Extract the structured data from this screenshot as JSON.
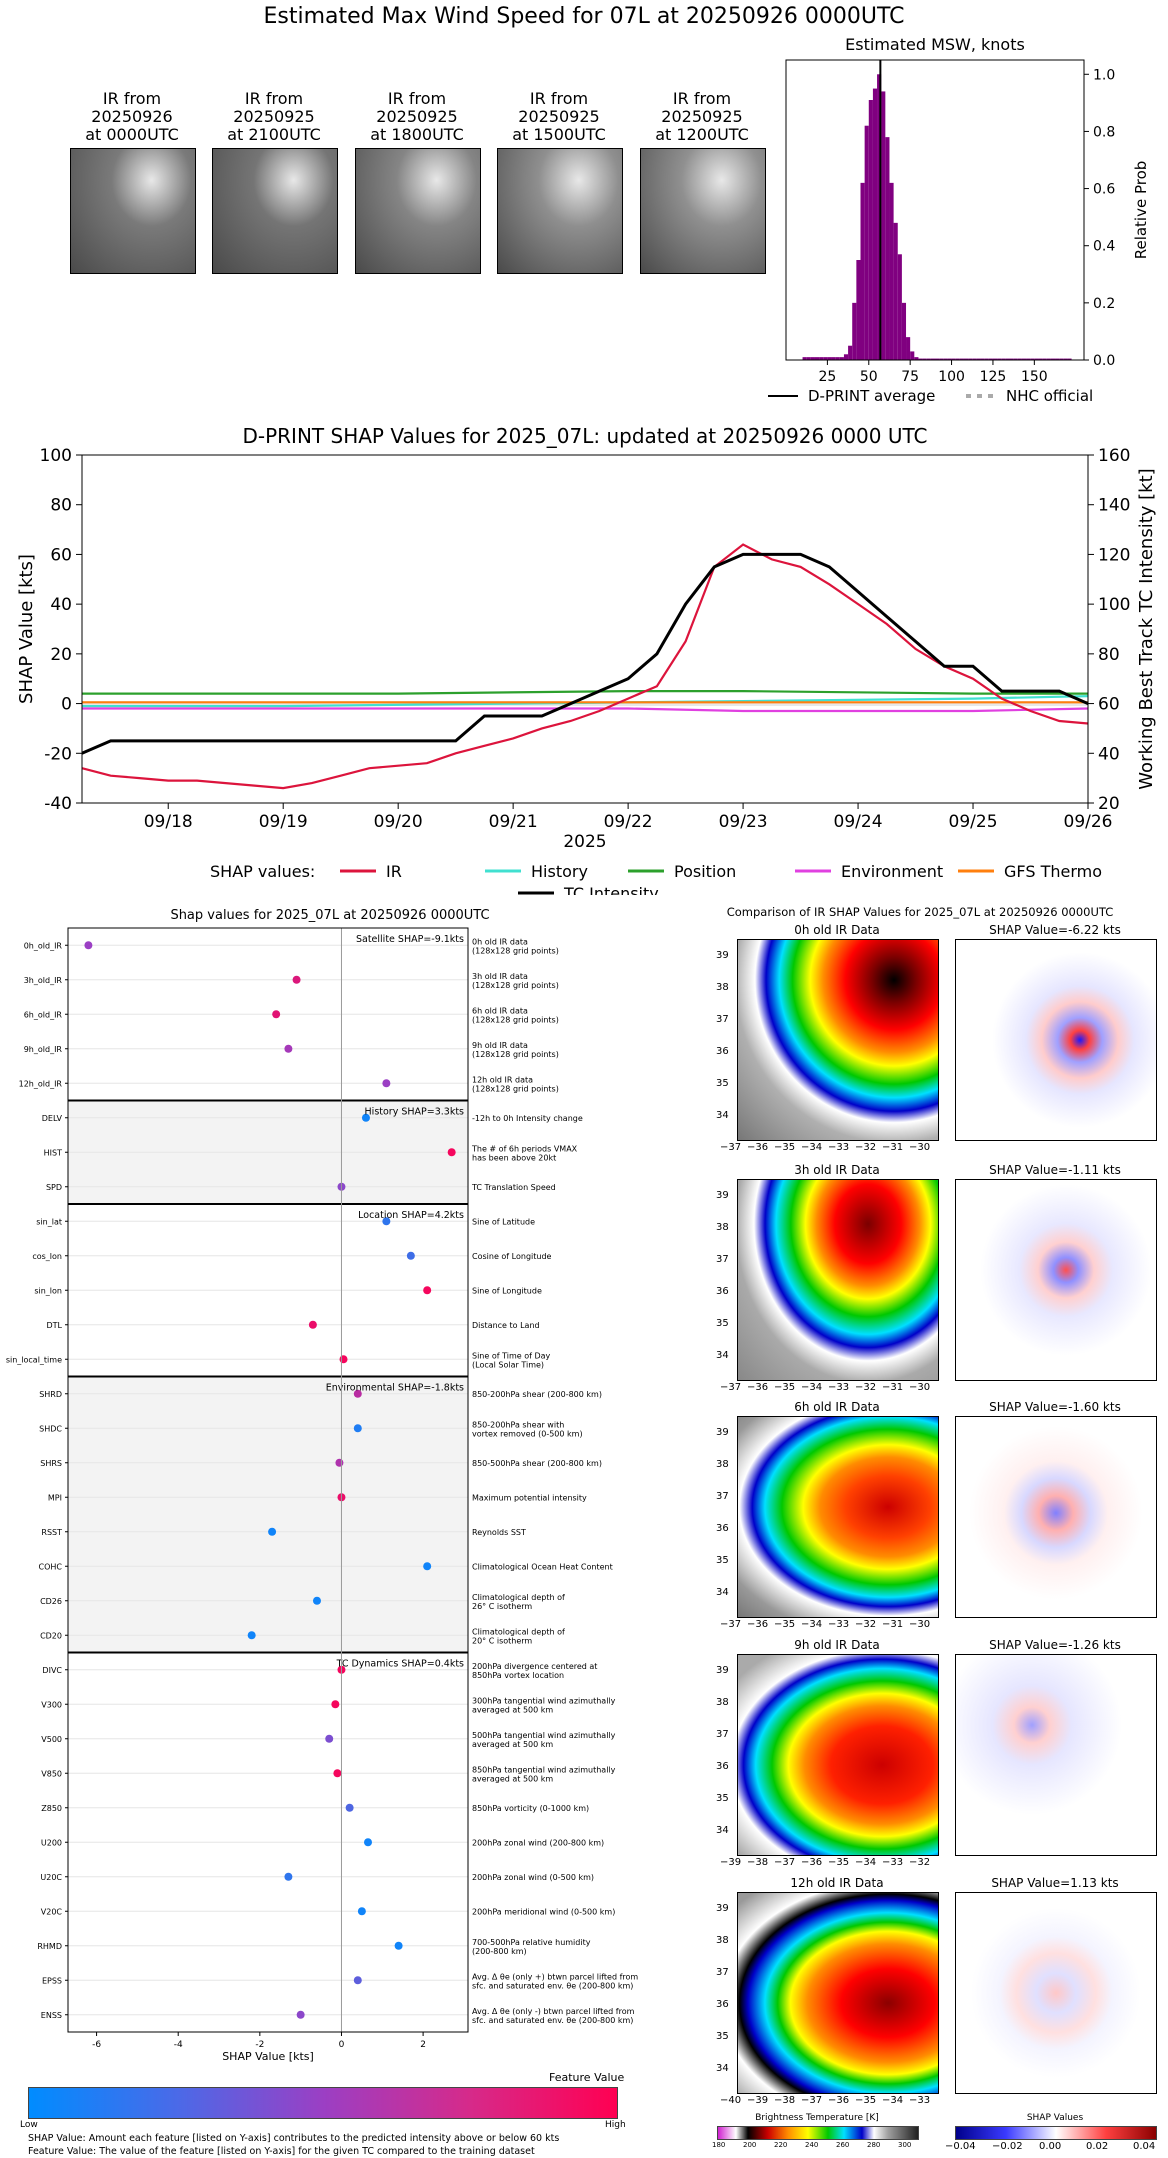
{
  "main_title": "Estimated Max Wind Speed for 07L at 20250926 0000UTC",
  "thumbnails": [
    {
      "caption_l1": "IR from",
      "caption_l2": "20250926",
      "caption_l3": "at 0000UTC",
      "tone": "#7a7a7a"
    },
    {
      "caption_l1": "IR from",
      "caption_l2": "20250925",
      "caption_l3": "at 2100UTC",
      "tone": "#757575"
    },
    {
      "caption_l1": "IR from",
      "caption_l2": "20250925",
      "caption_l3": "at 1800UTC",
      "tone": "#858585"
    },
    {
      "caption_l1": "IR from",
      "caption_l2": "20250925",
      "caption_l3": "at 1500UTC",
      "tone": "#8f8f8f"
    },
    {
      "caption_l1": "IR from",
      "caption_l2": "20250925",
      "caption_l3": "at 1200UTC",
      "tone": "#909090"
    }
  ],
  "chart_data": [
    {
      "id": "msw_histogram",
      "type": "bar",
      "title": "Estimated MSW, knots",
      "xlabel": "",
      "ylabel": "Relative Prob",
      "xlim": [
        0,
        180
      ],
      "ylim": [
        0,
        1.05
      ],
      "xticks": [
        "25",
        "50",
        "75",
        "100",
        "125",
        "150"
      ],
      "yticks": [
        "0.0",
        "0.2",
        "0.4",
        "0.6",
        "0.8",
        "1.0"
      ],
      "bin_width": 2.5,
      "bins_start": [
        10,
        12.5,
        15,
        17.5,
        20,
        22.5,
        25,
        27.5,
        30,
        32.5,
        35,
        37.5,
        40,
        42.5,
        45,
        47.5,
        50,
        52.5,
        55,
        57.5,
        60,
        62.5,
        65,
        67.5,
        70,
        72.5,
        75,
        77.5,
        80,
        82.5,
        85,
        87.5,
        90,
        92.5,
        95,
        97.5,
        100,
        102.5,
        105,
        107.5,
        110,
        112.5,
        115,
        117.5,
        120,
        122.5,
        125,
        127.5,
        130,
        132.5,
        135,
        137.5,
        140,
        142.5,
        145,
        147.5,
        150,
        152.5,
        155,
        157.5,
        160,
        162.5,
        165,
        167.5,
        170
      ],
      "values": [
        0.01,
        0.01,
        0.01,
        0.01,
        0.01,
        0.01,
        0.01,
        0.01,
        0.01,
        0.01,
        0.02,
        0.05,
        0.2,
        0.35,
        0.62,
        0.82,
        0.91,
        0.95,
        1.0,
        0.94,
        0.78,
        0.62,
        0.48,
        0.37,
        0.2,
        0.08,
        0.03,
        0.01,
        0.005,
        0.005,
        0.005,
        0.005,
        0.005,
        0.005,
        0.005,
        0.005,
        0.005,
        0.005,
        0.005,
        0.005,
        0.005,
        0.005,
        0.005,
        0.005,
        0.005,
        0.005,
        0.005,
        0.005,
        0.005,
        0.005,
        0.005,
        0.005,
        0.005,
        0.005,
        0.005,
        0.005,
        0.005,
        0.005,
        0.005,
        0.005,
        0.005,
        0.005,
        0.005,
        0.005,
        0.005
      ],
      "average_line_x": 57,
      "bar_color": "#800080",
      "legend": [
        {
          "label": "D-PRINT average",
          "style": "solid-black"
        },
        {
          "label": "NHC official",
          "style": "dotted-gray"
        }
      ]
    },
    {
      "id": "shap_timeseries",
      "type": "line",
      "title": "D-PRINT SHAP Values for 2025_07L: updated at 20250926 0000 UTC",
      "xlabel": "2025",
      "ylabel": "SHAP Value [kts]",
      "y2label": "Working Best Track TC Intensity [kt]",
      "xlim": [
        17.25,
        26.0
      ],
      "ylim": [
        -40,
        100
      ],
      "y2lim": [
        20,
        160
      ],
      "xticks": [
        {
          "x": 18,
          "label": "09/18"
        },
        {
          "x": 19,
          "label": "09/19"
        },
        {
          "x": 20,
          "label": "09/20"
        },
        {
          "x": 21,
          "label": "09/21"
        },
        {
          "x": 22,
          "label": "09/22"
        },
        {
          "x": 23,
          "label": "09/23"
        },
        {
          "x": 24,
          "label": "09/24"
        },
        {
          "x": 25,
          "label": "09/25"
        },
        {
          "x": 26,
          "label": "09/26"
        }
      ],
      "yticks": [
        "-40",
        "-20",
        "0",
        "20",
        "40",
        "60",
        "80",
        "100"
      ],
      "y2ticks": [
        "20",
        "40",
        "60",
        "80",
        "100",
        "120",
        "140",
        "160"
      ],
      "legend_prefix": "SHAP values:",
      "series": [
        {
          "name": "IR",
          "color": "#dc143c",
          "x": [
            17.25,
            17.5,
            17.75,
            18.0,
            18.25,
            18.5,
            18.75,
            19.0,
            19.25,
            19.5,
            19.75,
            20.0,
            20.25,
            20.5,
            20.75,
            21.0,
            21.25,
            21.5,
            21.75,
            22.0,
            22.25,
            22.5,
            22.75,
            23.0,
            23.25,
            23.5,
            23.75,
            24.0,
            24.25,
            24.5,
            24.75,
            25.0,
            25.25,
            25.5,
            25.75,
            26.0
          ],
          "values": [
            -26,
            -29,
            -30,
            -31,
            -31,
            -32,
            -33,
            -34,
            -32,
            -29,
            -26,
            -25,
            -24,
            -20,
            -17,
            -14,
            -10,
            -7,
            -3,
            2,
            7,
            25,
            55,
            64,
            58,
            55,
            48,
            40,
            32,
            22,
            15,
            10,
            2,
            -3,
            -7,
            -8
          ]
        },
        {
          "name": "History",
          "color": "#40e0d0",
          "x": [
            17.25,
            19,
            21,
            23,
            25,
            26
          ],
          "values": [
            -1,
            -1,
            0,
            1,
            2,
            3
          ]
        },
        {
          "name": "Position",
          "color": "#2ca02c",
          "x": [
            17.25,
            18,
            20,
            22,
            23,
            25,
            26
          ],
          "values": [
            4,
            4,
            4,
            5,
            5,
            4,
            4
          ]
        },
        {
          "name": "Environment",
          "color": "#e040e0",
          "x": [
            17.25,
            18,
            20,
            22,
            23,
            24,
            25,
            26
          ],
          "values": [
            -2,
            -2,
            -2,
            -2,
            -3,
            -3,
            -3,
            -2
          ]
        },
        {
          "name": "GFS Thermo",
          "color": "#ff7f0e",
          "x": [
            17.25,
            19,
            21,
            23,
            25,
            26
          ],
          "values": [
            0.5,
            0.5,
            0.5,
            0.5,
            0.5,
            0.5
          ]
        }
      ],
      "intensity": {
        "name": "TC Intensity",
        "color": "#000000",
        "x": [
          17.25,
          17.5,
          18.0,
          19.0,
          20.0,
          20.25,
          20.5,
          20.75,
          21.0,
          21.25,
          21.5,
          21.75,
          22.0,
          22.25,
          22.5,
          22.75,
          23.0,
          23.25,
          23.5,
          23.75,
          24.0,
          24.25,
          24.5,
          24.75,
          25.0,
          25.25,
          25.5,
          25.75,
          26.0
        ],
        "values": [
          40,
          45,
          45,
          45,
          45,
          45,
          45,
          55,
          55,
          55,
          60,
          65,
          70,
          80,
          100,
          115,
          120,
          120,
          120,
          115,
          105,
          95,
          85,
          75,
          75,
          65,
          65,
          65,
          60
        ]
      }
    },
    {
      "id": "shap_features",
      "type": "scatter",
      "title": "Shap values for 2025_07L at 20250926 0000UTC",
      "xlabel": "SHAP Value [kts]",
      "xlim": [
        -6.7,
        3.1
      ],
      "xticks": [
        "-6",
        "-4",
        "-2",
        "0",
        "2"
      ],
      "groups": [
        {
          "label": "Satellite SHAP=-9.1kts",
          "shaded": false,
          "features": [
            {
              "name": "0h_old_IR",
              "desc_l1": "0h old IR data",
              "desc_l2": "(128x128 grid points)",
              "value": -6.2,
              "fv": 0.5
            },
            {
              "name": "3h_old_IR",
              "desc_l1": "3h old IR data",
              "desc_l2": "(128x128 grid points)",
              "value": -1.1,
              "fv": 0.82
            },
            {
              "name": "6h_old_IR",
              "desc_l1": "6h old IR data",
              "desc_l2": "(128x128 grid points)",
              "value": -1.6,
              "fv": 0.85
            },
            {
              "name": "9h_old_IR",
              "desc_l1": "9h old IR data",
              "desc_l2": "(128x128 grid points)",
              "value": -1.3,
              "fv": 0.55
            },
            {
              "name": "12h_old_IR",
              "desc_l1": "12h old IR data",
              "desc_l2": "(128x128 grid points)",
              "value": 1.1,
              "fv": 0.5
            }
          ]
        },
        {
          "label": "History SHAP=3.3kts",
          "shaded": true,
          "features": [
            {
              "name": "DELV",
              "desc_l1": "-12h to 0h Intensity change",
              "desc_l2": "",
              "value": 0.6,
              "fv": 0.05
            },
            {
              "name": "HIST",
              "desc_l1": "The # of 6h periods VMAX",
              "desc_l2": "has been above 20kt",
              "value": 2.7,
              "fv": 0.95
            },
            {
              "name": "SPD",
              "desc_l1": "TC Translation Speed",
              "desc_l2": "",
              "value": 0.0,
              "fv": 0.45
            }
          ]
        },
        {
          "label": "Location SHAP=4.2kts",
          "shaded": false,
          "features": [
            {
              "name": "sin_lat",
              "desc_l1": "Sine of Latitude",
              "desc_l2": "",
              "value": 1.1,
              "fv": 0.15
            },
            {
              "name": "cos_lon",
              "desc_l1": "Cosine of Longitude",
              "desc_l2": "",
              "value": 1.7,
              "fv": 0.2
            },
            {
              "name": "sin_lon",
              "desc_l1": "Sine of Longitude",
              "desc_l2": "",
              "value": 2.1,
              "fv": 0.95
            },
            {
              "name": "DTL",
              "desc_l1": "Distance to Land",
              "desc_l2": "",
              "value": -0.7,
              "fv": 0.9
            },
            {
              "name": "sin_local_time",
              "desc_l1": "Sine of Time of Day",
              "desc_l2": "(Local Solar Time)",
              "value": 0.05,
              "fv": 0.95
            }
          ]
        },
        {
          "label": "Environmental SHAP=-1.8kts",
          "shaded": true,
          "features": [
            {
              "name": "SHRD",
              "desc_l1": "850-200hPa shear (200-800 km)",
              "desc_l2": "",
              "value": 0.4,
              "fv": 0.65
            },
            {
              "name": "SHDC",
              "desc_l1": "850-200hPa shear with",
              "desc_l2": "vortex removed (0-500 km)",
              "value": 0.4,
              "fv": 0.1
            },
            {
              "name": "SHRS",
              "desc_l1": "850-500hPa shear (200-800 km)",
              "desc_l2": "",
              "value": -0.05,
              "fv": 0.6
            },
            {
              "name": "MPI",
              "desc_l1": "Maximum potential intensity",
              "desc_l2": "",
              "value": 0.0,
              "fv": 0.9
            },
            {
              "name": "RSST",
              "desc_l1": "Reynolds SST",
              "desc_l2": "",
              "value": -1.7,
              "fv": 0.05
            },
            {
              "name": "COHC",
              "desc_l1": "Climatological Ocean Heat Content",
              "desc_l2": "",
              "value": 2.1,
              "fv": 0.05
            },
            {
              "name": "CD26",
              "desc_l1": "Climatological depth of",
              "desc_l2": "26° C isotherm",
              "value": -0.6,
              "fv": 0.05
            },
            {
              "name": "CD20",
              "desc_l1": "Climatological depth of",
              "desc_l2": "20° C isotherm",
              "value": -2.2,
              "fv": 0.05
            }
          ]
        },
        {
          "label": "TC Dynamics SHAP=0.4kts",
          "shaded": false,
          "features": [
            {
              "name": "DIVC",
              "desc_l1": "200hPa divergence centered at",
              "desc_l2": "850hPa vortex location",
              "value": 0.0,
              "fv": 0.95
            },
            {
              "name": "V300",
              "desc_l1": "300hPa tangential wind azimuthally",
              "desc_l2": "averaged at 500 km",
              "value": -0.15,
              "fv": 0.95
            },
            {
              "name": "V500",
              "desc_l1": "500hPa tangential wind azimuthally",
              "desc_l2": "averaged at 500 km",
              "value": -0.3,
              "fv": 0.4
            },
            {
              "name": "V850",
              "desc_l1": "850hPa tangential wind azimuthally",
              "desc_l2": "averaged at 500 km",
              "value": -0.1,
              "fv": 0.95
            },
            {
              "name": "Z850",
              "desc_l1": "850hPa vorticity (0-1000 km)",
              "desc_l2": "",
              "value": 0.2,
              "fv": 0.25
            },
            {
              "name": "U200",
              "desc_l1": "200hPa zonal wind (200-800 km)",
              "desc_l2": "",
              "value": 0.65,
              "fv": 0.05
            },
            {
              "name": "U20C",
              "desc_l1": "200hPa zonal wind (0-500 km)",
              "desc_l2": "",
              "value": -1.3,
              "fv": 0.15
            },
            {
              "name": "V20C",
              "desc_l1": "200hPa meridional wind (0-500 km)",
              "desc_l2": "",
              "value": 0.5,
              "fv": 0.05
            },
            {
              "name": "RHMD",
              "desc_l1": "700-500hPa relative humidity",
              "desc_l2": "(200-800 km)",
              "value": 1.4,
              "fv": 0.05
            },
            {
              "name": "EPSS",
              "desc_l1": "Avg. Δ θe (only +) btwn parcel lifted from",
              "desc_l2": "sfc. and saturated env. θe (200-800 km)",
              "value": 0.4,
              "fv": 0.3
            },
            {
              "name": "ENSS",
              "desc_l1": "Avg. Δ θe (only -) btwn parcel lifted from",
              "desc_l2": "sfc. and saturated env. θe (200-800 km)",
              "value": -1.0,
              "fv": 0.45
            }
          ]
        }
      ]
    }
  ],
  "feature_colorbar": {
    "title": "Feature Value",
    "low": "Low",
    "high": "High"
  },
  "footnotes": {
    "line1": "SHAP Value: Amount each feature [listed on Y-axis] contributes to the predicted intensity above or below 60 kts",
    "line2": "Feature Value: The value of the feature [listed on Y-axis] for the given TC compared to the training dataset"
  },
  "ir_comparison": {
    "title": "Comparison of IR SHAP Values for 2025_07L at 20250926 0000UTC",
    "rows": [
      {
        "ir_title": "0h old IR Data",
        "shap_title": "SHAP Value=-6.22 kts",
        "xticks": [
          "−37",
          "−36",
          "−35",
          "−34",
          "−33",
          "−32",
          "−31",
          "−30"
        ],
        "yticks": [
          "39",
          "38",
          "37",
          "36",
          "35",
          "34"
        ]
      },
      {
        "ir_title": "3h old IR Data",
        "shap_title": "SHAP Value=-1.11 kts",
        "xticks": [
          "−37",
          "−36",
          "−35",
          "−34",
          "−33",
          "−32",
          "−31",
          "−30"
        ],
        "yticks": [
          "39",
          "38",
          "37",
          "36",
          "35",
          "34"
        ]
      },
      {
        "ir_title": "6h old IR Data",
        "shap_title": "SHAP Value=-1.60 kts",
        "xticks": [
          "−37",
          "−36",
          "−35",
          "−34",
          "−33",
          "−32",
          "−31",
          "−30"
        ],
        "yticks": [
          "39",
          "38",
          "37",
          "36",
          "35",
          "34"
        ]
      },
      {
        "ir_title": "9h old IR Data",
        "shap_title": "SHAP Value=-1.26 kts",
        "xticks": [
          "−39",
          "−38",
          "−37",
          "−36",
          "−35",
          "−34",
          "−33",
          "−32"
        ],
        "yticks": [
          "39",
          "38",
          "37",
          "36",
          "35",
          "34"
        ]
      },
      {
        "ir_title": "12h old IR Data",
        "shap_title": "SHAP Value=1.13 kts",
        "xticks": [
          "−40",
          "−39",
          "−38",
          "−37",
          "−36",
          "−35",
          "−34",
          "−33"
        ],
        "yticks": [
          "39",
          "38",
          "37",
          "36",
          "35",
          "34"
        ]
      }
    ],
    "bt_colorbar": {
      "title": "Brightness Temperature [K]",
      "ticks": [
        "180",
        "200",
        "220",
        "240",
        "260",
        "280",
        "300"
      ]
    },
    "shap_colorbar": {
      "title": "SHAP Values",
      "ticks": [
        "−0.04",
        "−0.02",
        "0.00",
        "0.02",
        "0.04"
      ]
    }
  }
}
